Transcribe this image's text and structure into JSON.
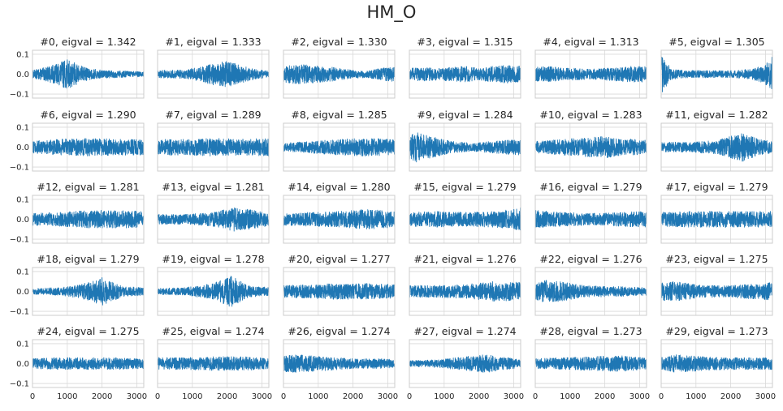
{
  "figure": {
    "title": "HM_O"
  },
  "colors": {
    "line": "#1f77b4",
    "grid": "#d9d9d9",
    "frame": "#cccccc",
    "text": "#262626"
  },
  "chart_data": {
    "type": "line",
    "layout": "grid 5 rows x 6 columns",
    "xlim": [
      0,
      3200
    ],
    "ylim": [
      -0.12,
      0.12
    ],
    "xticks": [
      0,
      1000,
      2000,
      3000
    ],
    "xtick_labels": [
      "0",
      "1000",
      "2000",
      "3000"
    ],
    "yticks": [
      0.1,
      0.0,
      -0.1
    ],
    "ytick_labels": [
      "0.1",
      "0.0",
      "−0.1"
    ],
    "grid": true,
    "x_tick_labels_on_bottom_row_only": true,
    "y_tick_labels_on_first_column_only": true,
    "n_samples_per_series": 3200,
    "subplots": [
      {
        "title": "#0, eigval = 1.342",
        "envelope": {
          "x": [
            0,
            400,
            800,
            1000,
            1300,
            1600,
            2000,
            2400,
            2800,
            3200
          ],
          "amplitude": [
            0.02,
            0.035,
            0.06,
            0.075,
            0.05,
            0.03,
            0.02,
            0.018,
            0.015,
            0.012
          ]
        }
      },
      {
        "title": "#1, eigval = 1.333",
        "envelope": {
          "x": [
            0,
            400,
            800,
            1200,
            1600,
            2000,
            2400,
            2800,
            3200
          ],
          "amplitude": [
            0.02,
            0.02,
            0.022,
            0.035,
            0.055,
            0.065,
            0.045,
            0.025,
            0.015
          ]
        }
      },
      {
        "title": "#2, eigval = 1.330",
        "envelope": {
          "x": [
            0,
            400,
            800,
            1200,
            1600,
            2000,
            2400,
            2800,
            3200
          ],
          "amplitude": [
            0.04,
            0.05,
            0.045,
            0.04,
            0.03,
            0.02,
            0.018,
            0.03,
            0.04
          ]
        }
      },
      {
        "title": "#3, eigval = 1.315",
        "envelope": {
          "x": [
            0,
            400,
            800,
            1200,
            1600,
            2000,
            2400,
            2800,
            3200
          ],
          "amplitude": [
            0.03,
            0.035,
            0.03,
            0.035,
            0.04,
            0.03,
            0.04,
            0.045,
            0.04
          ]
        }
      },
      {
        "title": "#4, eigval = 1.313",
        "envelope": {
          "x": [
            0,
            400,
            800,
            1200,
            1600,
            2000,
            2400,
            2800,
            3200
          ],
          "amplitude": [
            0.035,
            0.04,
            0.03,
            0.03,
            0.025,
            0.03,
            0.035,
            0.04,
            0.04
          ]
        }
      },
      {
        "title": "#5, eigval = 1.305",
        "envelope": {
          "x": [
            0,
            100,
            300,
            600,
            1200,
            2000,
            2600,
            3000,
            3200
          ],
          "amplitude": [
            0.1,
            0.07,
            0.03,
            0.02,
            0.018,
            0.018,
            0.025,
            0.05,
            0.1
          ]
        }
      },
      {
        "title": "#6, eigval = 1.290",
        "envelope": {
          "x": [
            0,
            800,
            1600,
            2400,
            3200
          ],
          "amplitude": [
            0.03,
            0.04,
            0.045,
            0.04,
            0.04
          ]
        }
      },
      {
        "title": "#7, eigval = 1.289",
        "envelope": {
          "x": [
            0,
            800,
            1600,
            2400,
            3200
          ],
          "amplitude": [
            0.04,
            0.04,
            0.045,
            0.04,
            0.045
          ]
        }
      },
      {
        "title": "#8, eigval = 1.285",
        "envelope": {
          "x": [
            0,
            800,
            1600,
            2400,
            3200
          ],
          "amplitude": [
            0.02,
            0.03,
            0.04,
            0.045,
            0.04
          ]
        }
      },
      {
        "title": "#9, eigval = 1.284",
        "envelope": {
          "x": [
            0,
            200,
            600,
            1200,
            1800,
            2400,
            3200
          ],
          "amplitude": [
            0.06,
            0.075,
            0.055,
            0.03,
            0.02,
            0.03,
            0.04
          ]
        }
      },
      {
        "title": "#10, eigval = 1.283",
        "envelope": {
          "x": [
            0,
            800,
            1600,
            2000,
            2400,
            3200
          ],
          "amplitude": [
            0.03,
            0.04,
            0.05,
            0.055,
            0.045,
            0.035
          ]
        }
      },
      {
        "title": "#11, eigval = 1.282",
        "envelope": {
          "x": [
            0,
            800,
            1600,
            2000,
            2300,
            2800,
            3200
          ],
          "amplitude": [
            0.025,
            0.025,
            0.035,
            0.055,
            0.075,
            0.04,
            0.03
          ]
        }
      },
      {
        "title": "#12, eigval = 1.281",
        "envelope": {
          "x": [
            0,
            800,
            1600,
            2400,
            3200
          ],
          "amplitude": [
            0.03,
            0.035,
            0.045,
            0.045,
            0.04
          ]
        }
      },
      {
        "title": "#13, eigval = 1.281",
        "envelope": {
          "x": [
            0,
            800,
            1600,
            2200,
            2800,
            3200
          ],
          "amplitude": [
            0.025,
            0.025,
            0.035,
            0.06,
            0.045,
            0.035
          ]
        }
      },
      {
        "title": "#14, eigval = 1.280",
        "envelope": {
          "x": [
            0,
            800,
            1600,
            2400,
            3200
          ],
          "amplitude": [
            0.03,
            0.035,
            0.04,
            0.05,
            0.04
          ]
        }
      },
      {
        "title": "#15, eigval = 1.279",
        "envelope": {
          "x": [
            0,
            800,
            1600,
            2400,
            3000,
            3200
          ],
          "amplitude": [
            0.035,
            0.04,
            0.035,
            0.04,
            0.05,
            0.06
          ]
        }
      },
      {
        "title": "#16, eigval = 1.279",
        "envelope": {
          "x": [
            0,
            800,
            1600,
            2400,
            3200
          ],
          "amplitude": [
            0.045,
            0.035,
            0.03,
            0.035,
            0.04
          ]
        }
      },
      {
        "title": "#17, eigval = 1.279",
        "envelope": {
          "x": [
            0,
            800,
            1600,
            2400,
            3200
          ],
          "amplitude": [
            0.035,
            0.04,
            0.04,
            0.04,
            0.04
          ]
        }
      },
      {
        "title": "#18, eigval = 1.279",
        "envelope": {
          "x": [
            0,
            800,
            1400,
            2000,
            2600,
            3200
          ],
          "amplitude": [
            0.015,
            0.02,
            0.035,
            0.07,
            0.025,
            0.02
          ]
        }
      },
      {
        "title": "#19, eigval = 1.278",
        "envelope": {
          "x": [
            0,
            800,
            1600,
            2100,
            2600,
            3200
          ],
          "amplitude": [
            0.015,
            0.02,
            0.04,
            0.08,
            0.03,
            0.02
          ]
        }
      },
      {
        "title": "#20, eigval = 1.277",
        "envelope": {
          "x": [
            0,
            800,
            1600,
            2400,
            3200
          ],
          "amplitude": [
            0.03,
            0.035,
            0.04,
            0.04,
            0.035
          ]
        }
      },
      {
        "title": "#21, eigval = 1.276",
        "envelope": {
          "x": [
            0,
            800,
            1600,
            2400,
            3200
          ],
          "amplitude": [
            0.03,
            0.03,
            0.035,
            0.05,
            0.045
          ]
        }
      },
      {
        "title": "#22, eigval = 1.276",
        "envelope": {
          "x": [
            0,
            300,
            700,
            1400,
            2400,
            3200
          ],
          "amplitude": [
            0.04,
            0.06,
            0.05,
            0.03,
            0.025,
            0.02
          ]
        }
      },
      {
        "title": "#23, eigval = 1.275",
        "envelope": {
          "x": [
            0,
            400,
            1200,
            2000,
            2800,
            3200
          ],
          "amplitude": [
            0.045,
            0.05,
            0.03,
            0.03,
            0.04,
            0.045
          ]
        }
      },
      {
        "title": "#24, eigval = 1.275",
        "envelope": {
          "x": [
            0,
            800,
            1600,
            2400,
            3200
          ],
          "amplitude": [
            0.025,
            0.03,
            0.03,
            0.03,
            0.025
          ]
        }
      },
      {
        "title": "#25, eigval = 1.274",
        "envelope": {
          "x": [
            0,
            800,
            1600,
            2400,
            3200
          ],
          "amplitude": [
            0.03,
            0.03,
            0.035,
            0.035,
            0.03
          ]
        }
      },
      {
        "title": "#26, eigval = 1.274",
        "envelope": {
          "x": [
            0,
            400,
            1200,
            2000,
            2800,
            3200
          ],
          "amplitude": [
            0.04,
            0.045,
            0.035,
            0.025,
            0.025,
            0.02
          ]
        }
      },
      {
        "title": "#27, eigval = 1.274",
        "envelope": {
          "x": [
            0,
            800,
            1600,
            2200,
            2800,
            3200
          ],
          "amplitude": [
            0.015,
            0.02,
            0.035,
            0.045,
            0.03,
            0.02
          ]
        }
      },
      {
        "title": "#28, eigval = 1.273",
        "envelope": {
          "x": [
            0,
            800,
            1600,
            2400,
            3200
          ],
          "amplitude": [
            0.025,
            0.03,
            0.035,
            0.04,
            0.03
          ]
        }
      },
      {
        "title": "#29, eigval = 1.273",
        "envelope": {
          "x": [
            0,
            400,
            1200,
            2000,
            2800,
            3200
          ],
          "amplitude": [
            0.03,
            0.045,
            0.035,
            0.03,
            0.03,
            0.03
          ]
        }
      }
    ]
  }
}
